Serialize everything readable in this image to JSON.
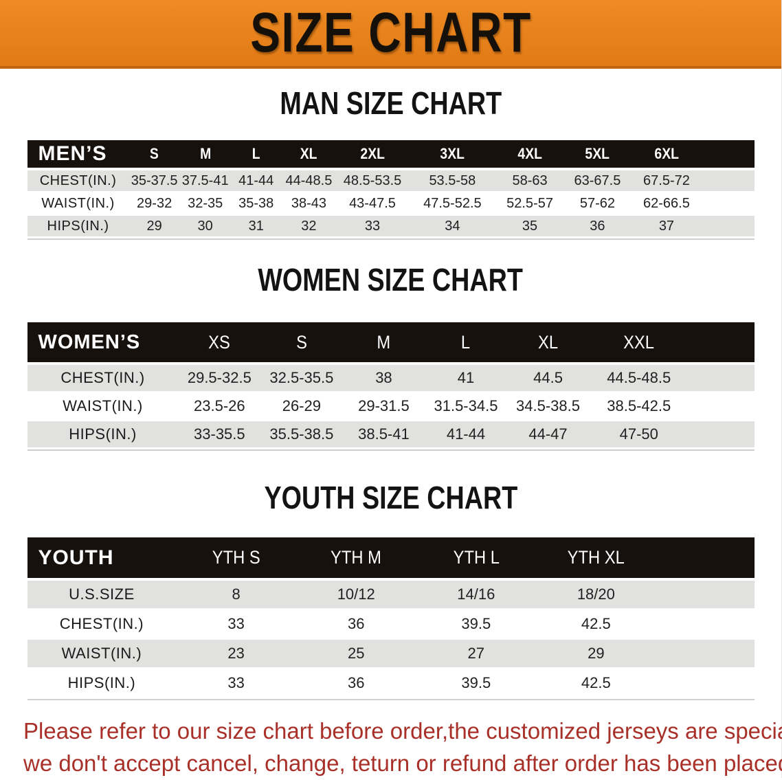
{
  "banner": {
    "title": "SIZE CHART"
  },
  "colors": {
    "banner_orange": "#e8821f",
    "band_black": "#17110e",
    "stripe_gray": "#e1e1df",
    "footer_red": "#a83028"
  },
  "sections": {
    "men": {
      "heading": "MAN SIZE CHART",
      "corner_label": "MEN’S",
      "sizes": [
        "S",
        "M",
        "L",
        "XL",
        "2XL",
        "3XL",
        "4XL",
        "5XL",
        "6XL"
      ],
      "rows": [
        {
          "label": "CHEST(IN.)",
          "values": [
            "35-37.5",
            "37.5-41",
            "41-44",
            "44-48.5",
            "48.5-53.5",
            "53.5-58",
            "58-63",
            "63-67.5",
            "67.5-72"
          ]
        },
        {
          "label": "WAIST(IN.)",
          "values": [
            "29-32",
            "32-35",
            "35-38",
            "38-43",
            "43-47.5",
            "47.5-52.5",
            "52.5-57",
            "57-62",
            "62-66.5"
          ]
        },
        {
          "label": "HIPS(IN.)",
          "values": [
            "29",
            "30",
            "31",
            "32",
            "33",
            "34",
            "35",
            "36",
            "37"
          ]
        }
      ]
    },
    "women": {
      "heading": "WOMEN SIZE CHART",
      "corner_label": "WOMEN’S",
      "sizes": [
        "XS",
        "S",
        "M",
        "L",
        "XL",
        "XXL"
      ],
      "rows": [
        {
          "label": "CHEST(IN.)",
          "values": [
            "29.5-32.5",
            "32.5-35.5",
            "38",
            "41",
            "44.5",
            "44.5-48.5"
          ]
        },
        {
          "label": "WAIST(IN.)",
          "values": [
            "23.5-26",
            "26-29",
            "29-31.5",
            "31.5-34.5",
            "34.5-38.5",
            "38.5-42.5"
          ]
        },
        {
          "label": "HIPS(IN.)",
          "values": [
            "33-35.5",
            "35.5-38.5",
            "38.5-41",
            "41-44",
            "44-47",
            "47-50"
          ]
        }
      ]
    },
    "youth": {
      "heading": "YOUTH SIZE CHART",
      "corner_label": "YOUTH",
      "sizes": [
        "YTH S",
        "YTH M",
        "YTH L",
        "YTH XL"
      ],
      "rows": [
        {
          "label": "U.S.SIZE",
          "values": [
            "8",
            "10/12",
            "14/16",
            "18/20"
          ]
        },
        {
          "label": "CHEST(IN.)",
          "values": [
            "33",
            "36",
            "39.5",
            "42.5"
          ]
        },
        {
          "label": "WAIST(IN.)",
          "values": [
            "23",
            "25",
            "27",
            "29"
          ]
        },
        {
          "label": "HIPS(IN.)",
          "values": [
            "33",
            "36",
            "39.5",
            "42.5"
          ]
        }
      ]
    }
  },
  "footer": {
    "line1": "Please refer to our size chart before order,the customized jerseys are special products,",
    "line2": "we don't accept cancel, change, teturn or refund after order has been placed!"
  }
}
